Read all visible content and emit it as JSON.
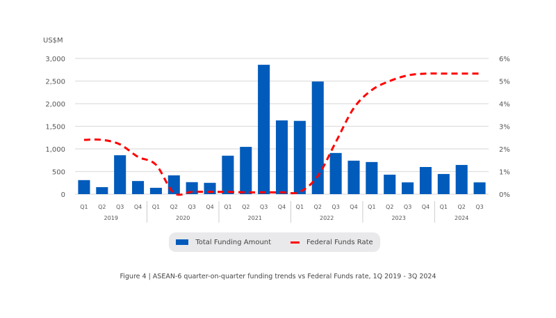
{
  "chart_data": {
    "type": "bar+line",
    "y_left_label": "US$M",
    "y_left_ticks": [
      "0",
      "500",
      "1,000",
      "1,500",
      "2,000",
      "2,500",
      "3,000"
    ],
    "y_left_lim": [
      0,
      3000
    ],
    "y_right_ticks": [
      "0%",
      "1%",
      "2%",
      "3%",
      "4%",
      "5%",
      "6%"
    ],
    "y_right_lim": [
      0,
      6
    ],
    "categories": [
      "Q1",
      "Q2",
      "Q3",
      "Q4",
      "Q1",
      "Q2",
      "Q3",
      "Q4",
      "Q1",
      "Q2",
      "Q3",
      "Q4",
      "Q1",
      "Q2",
      "Q3",
      "Q4",
      "Q1",
      "Q2",
      "Q3",
      "Q4",
      "Q1",
      "Q2",
      "Q3"
    ],
    "years": [
      {
        "label": "2019",
        "count": 4
      },
      {
        "label": "2020",
        "count": 4
      },
      {
        "label": "2021",
        "count": 4
      },
      {
        "label": "2022",
        "count": 4
      },
      {
        "label": "2023",
        "count": 4
      },
      {
        "label": "2024",
        "count": 3
      }
    ],
    "series": [
      {
        "name": "Total Funding Amount",
        "type": "bar",
        "color": "#005bbb",
        "axis": "left",
        "values": [
          310,
          155,
          860,
          290,
          140,
          415,
          265,
          250,
          850,
          1045,
          2860,
          1630,
          1620,
          2490,
          910,
          740,
          710,
          430,
          260,
          600,
          445,
          645,
          260
        ]
      },
      {
        "name": "Federal Funds Rate",
        "type": "line",
        "style": "dashed",
        "color": "#ff0000",
        "axis": "right",
        "values": [
          2.4,
          2.4,
          2.2,
          1.65,
          1.3,
          0.05,
          0.1,
          0.1,
          0.1,
          0.08,
          0.08,
          0.08,
          0.1,
          0.8,
          2.3,
          3.8,
          4.6,
          5.0,
          5.25,
          5.33,
          5.33,
          5.33,
          5.33
        ]
      }
    ],
    "grid": true,
    "legend_position": "bottom",
    "caption": "Figure 4 | ASEAN-6 quarter-on-quarter funding trends vs Federal Funds rate, 1Q 2019 - 3Q 2024"
  }
}
